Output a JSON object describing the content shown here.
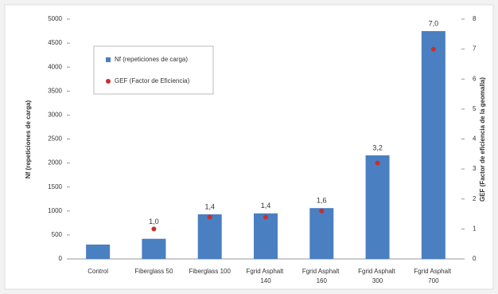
{
  "chart_data": {
    "type": "bar",
    "categories": [
      "Control",
      "Fiberglass 50",
      "Fiberglass 100",
      "Fgrid Asphalt 140",
      "Fgrid Asphalt 160",
      "Fgrid Asphalt 300",
      "Fgrid Asphalt 700"
    ],
    "series": [
      {
        "name": "Nf (repeticiones de carga)",
        "type": "bar",
        "color": "#4a7fc1",
        "values": [
          300,
          420,
          930,
          950,
          1060,
          2160,
          4750
        ]
      },
      {
        "name": "GEF (Factor de Eficiencia)",
        "type": "scatter",
        "axis": "y2",
        "color": "#c8302c",
        "values": [
          null,
          1.0,
          1.4,
          1.4,
          1.6,
          3.2,
          7.0
        ],
        "value_labels": [
          null,
          "1,0",
          "1,4",
          "1,4",
          "1,6",
          "3,2",
          "7,0"
        ]
      }
    ],
    "ylabel": "Nf (repeticiones de carga)",
    "y2label": "GEF (Factor de eficiencia de la geomalla)",
    "ylim": [
      0,
      5000
    ],
    "yticks": [
      0,
      500,
      1000,
      1500,
      2000,
      2500,
      3000,
      3500,
      4000,
      4500,
      5000
    ],
    "y2lim": [
      0,
      8
    ],
    "y2ticks": [
      0,
      1,
      2,
      3,
      4,
      5,
      6,
      7,
      8
    ],
    "legend": "top-left"
  }
}
